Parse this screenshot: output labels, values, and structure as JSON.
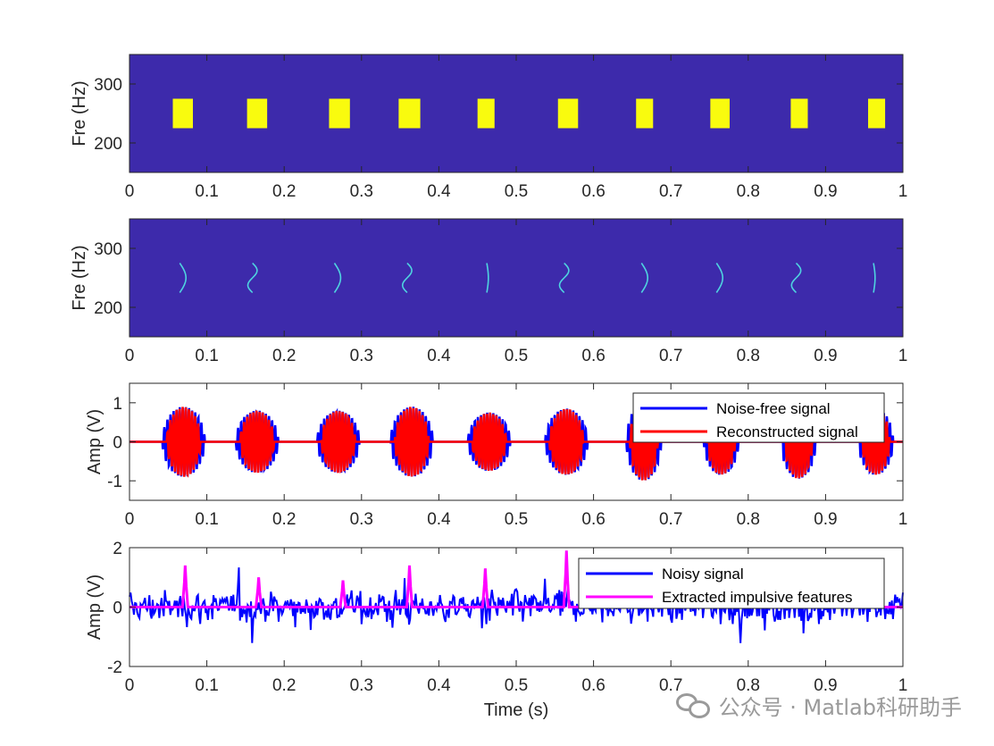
{
  "chart_data": [
    {
      "type": "heatmap",
      "ylabel": "Fre (Hz)",
      "xlabel": "",
      "xlim": [
        0,
        1
      ],
      "ylim": [
        150,
        350
      ],
      "xticks": [
        "0",
        "0.1",
        "0.2",
        "0.3",
        "0.4",
        "0.5",
        "0.6",
        "0.7",
        "0.8",
        "0.9",
        "1"
      ],
      "yticks": [
        "200",
        "300"
      ],
      "background_color": "#3d2aab",
      "mark_color": "#f9fb0e",
      "blocks": [
        {
          "x0": 0.056,
          "x1": 0.082,
          "f0": 225,
          "f1": 275
        },
        {
          "x0": 0.152,
          "x1": 0.178,
          "f0": 225,
          "f1": 275
        },
        {
          "x0": 0.258,
          "x1": 0.285,
          "f0": 225,
          "f1": 275
        },
        {
          "x0": 0.348,
          "x1": 0.376,
          "f0": 225,
          "f1": 275
        },
        {
          "x0": 0.45,
          "x1": 0.472,
          "f0": 225,
          "f1": 275
        },
        {
          "x0": 0.554,
          "x1": 0.58,
          "f0": 225,
          "f1": 275
        },
        {
          "x0": 0.655,
          "x1": 0.677,
          "f0": 225,
          "f1": 275
        },
        {
          "x0": 0.751,
          "x1": 0.776,
          "f0": 225,
          "f1": 275
        },
        {
          "x0": 0.855,
          "x1": 0.877,
          "f0": 225,
          "f1": 275
        },
        {
          "x0": 0.955,
          "x1": 0.977,
          "f0": 225,
          "f1": 275
        }
      ]
    },
    {
      "type": "heatmap",
      "ylabel": "Fre (Hz)",
      "xlabel": "",
      "xlim": [
        0,
        1
      ],
      "ylim": [
        150,
        350
      ],
      "xticks": [
        "0",
        "0.1",
        "0.2",
        "0.3",
        "0.4",
        "0.5",
        "0.6",
        "0.7",
        "0.8",
        "0.9",
        "1"
      ],
      "yticks": [
        "200",
        "300"
      ],
      "background_color": "#3d2aab",
      "ridge_color": "#4fd3e0",
      "ridges": [
        {
          "t": 0.068,
          "shape": "c"
        },
        {
          "t": 0.162,
          "shape": "s"
        },
        {
          "t": 0.268,
          "shape": "c"
        },
        {
          "t": 0.362,
          "shape": "s"
        },
        {
          "t": 0.465,
          "shape": "l"
        },
        {
          "t": 0.565,
          "shape": "s"
        },
        {
          "t": 0.665,
          "shape": "c"
        },
        {
          "t": 0.762,
          "shape": "c"
        },
        {
          "t": 0.865,
          "shape": "s"
        },
        {
          "t": 0.965,
          "shape": "l"
        }
      ]
    },
    {
      "type": "line",
      "ylabel": "Amp (V)",
      "xlabel": "",
      "xlim": [
        0,
        1
      ],
      "ylim": [
        -1.5,
        1.5
      ],
      "xticks": [
        "0",
        "0.1",
        "0.2",
        "0.3",
        "0.4",
        "0.5",
        "0.6",
        "0.7",
        "0.8",
        "0.9",
        "1"
      ],
      "yticks": [
        "-1",
        "0",
        "1"
      ],
      "legend_position": "top-right",
      "bursts": [
        {
          "center": 0.07,
          "amp": 0.9,
          "width": 0.022
        },
        {
          "center": 0.165,
          "amp": 0.8,
          "width": 0.022
        },
        {
          "center": 0.27,
          "amp": 0.8,
          "width": 0.022
        },
        {
          "center": 0.365,
          "amp": 0.9,
          "width": 0.022
        },
        {
          "center": 0.465,
          "amp": 0.75,
          "width": 0.022
        },
        {
          "center": 0.565,
          "amp": 0.85,
          "width": 0.022
        },
        {
          "center": 0.665,
          "amp": 1.0,
          "width": 0.018
        },
        {
          "center": 0.765,
          "amp": 0.85,
          "width": 0.018
        },
        {
          "center": 0.865,
          "amp": 0.95,
          "width": 0.018
        },
        {
          "center": 0.965,
          "amp": 0.85,
          "width": 0.018
        }
      ],
      "series": [
        {
          "name": "Noise-free signal",
          "color": "#0000ff"
        },
        {
          "name": "Reconstructed signal",
          "color": "#ff0000"
        }
      ]
    },
    {
      "type": "line",
      "ylabel": "Amp (V)",
      "xlabel": "Time (s)",
      "xlim": [
        0,
        1
      ],
      "ylim": [
        -2,
        2
      ],
      "xticks": [
        "0",
        "0.1",
        "0.2",
        "0.3",
        "0.4",
        "0.5",
        "0.6",
        "0.7",
        "0.8",
        "0.9",
        "1"
      ],
      "yticks": [
        "-2",
        "0",
        "2"
      ],
      "legend_position": "top-right",
      "impulses": [
        {
          "t": 0.072,
          "v": 1.4
        },
        {
          "t": 0.167,
          "v": 1.0
        },
        {
          "t": 0.276,
          "v": 0.9
        },
        {
          "t": 0.362,
          "v": 1.4
        },
        {
          "t": 0.46,
          "v": 1.3
        },
        {
          "t": 0.565,
          "v": 1.9
        },
        {
          "t": 0.665,
          "v": 1.6
        },
        {
          "t": 0.765,
          "v": 0.5
        },
        {
          "t": 0.865,
          "v": 0.5
        },
        {
          "t": 0.965,
          "v": 0.3
        }
      ],
      "series": [
        {
          "name": "Noisy signal",
          "color": "#0000ff"
        },
        {
          "name": "Extracted impulsive features",
          "color": "#ff00ff"
        }
      ]
    }
  ],
  "watermark": {
    "text": "公众号 · Matlab科研助手",
    "icon": "wechat-icon"
  }
}
